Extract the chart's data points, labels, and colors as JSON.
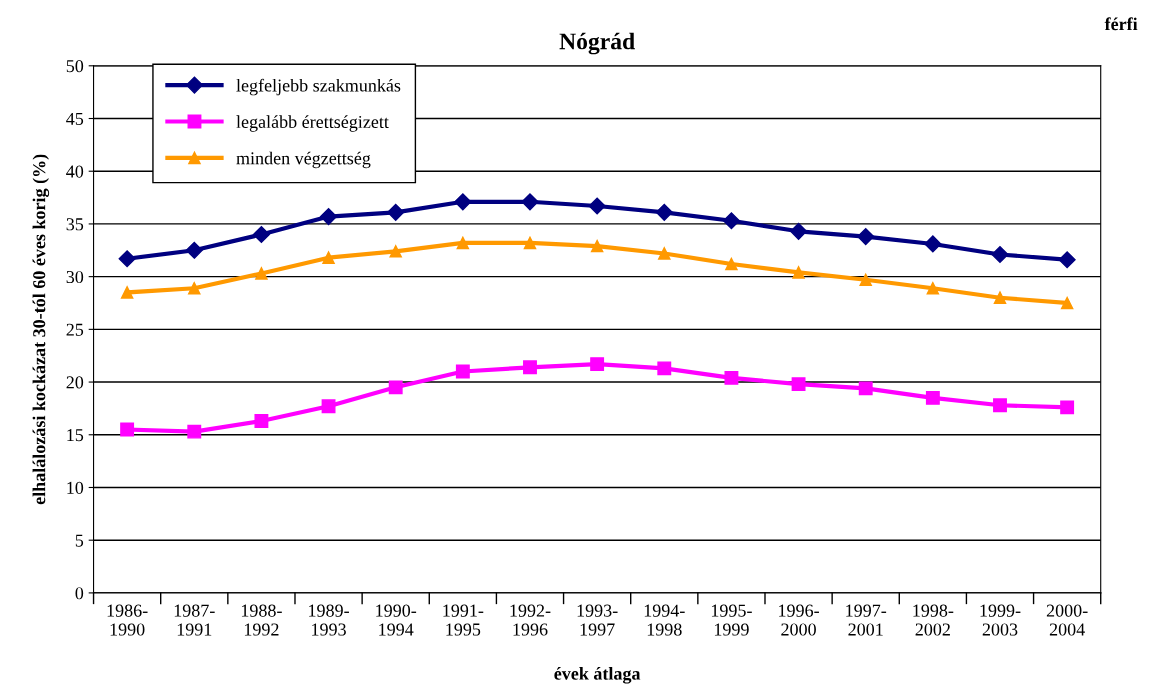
{
  "chart_data": {
    "type": "line",
    "title": "Nógrád",
    "xlabel": "évek átlaga",
    "ylabel": "elhalálozási kockázat 30-tól 60 éves korig (%)",
    "annotations": [
      "férfi"
    ],
    "categories": [
      "1986-\n1990",
      "1987-\n1991",
      "1988-\n1992",
      "1989-\n1993",
      "1990-\n1994",
      "1991-\n1995",
      "1992-\n1996",
      "1993-\n1997",
      "1994-\n1998",
      "1995-\n1999",
      "1996-\n2000",
      "1997-\n2001",
      "1998-\n2002",
      "1999-\n2003",
      "2000-\n2004"
    ],
    "series": [
      {
        "name": "legfeljebb szakmunkás",
        "color": "#000080",
        "marker": "diamond",
        "values": [
          31.7,
          32.5,
          34.0,
          35.7,
          36.1,
          37.1,
          37.1,
          36.7,
          36.1,
          35.3,
          34.3,
          33.8,
          33.1,
          32.1,
          31.6
        ]
      },
      {
        "name": "legalább érettségizett",
        "color": "#ff00ff",
        "marker": "square",
        "values": [
          15.5,
          15.3,
          16.3,
          17.7,
          19.5,
          21.0,
          21.4,
          21.7,
          21.3,
          20.4,
          19.8,
          19.4,
          18.5,
          17.8,
          17.6
        ]
      },
      {
        "name": "minden végzettség",
        "color": "#ff9900",
        "marker": "triangle",
        "values": [
          28.5,
          28.9,
          30.3,
          31.8,
          32.4,
          33.2,
          33.2,
          32.9,
          32.2,
          31.2,
          30.4,
          29.7,
          28.9,
          28.0,
          27.5
        ]
      }
    ],
    "ylim": [
      0,
      50
    ],
    "yticks": [
      0,
      5,
      10,
      15,
      20,
      25,
      30,
      35,
      40,
      45,
      50
    ],
    "grid": "y",
    "legend": "top left",
    "line_style": "solid"
  }
}
